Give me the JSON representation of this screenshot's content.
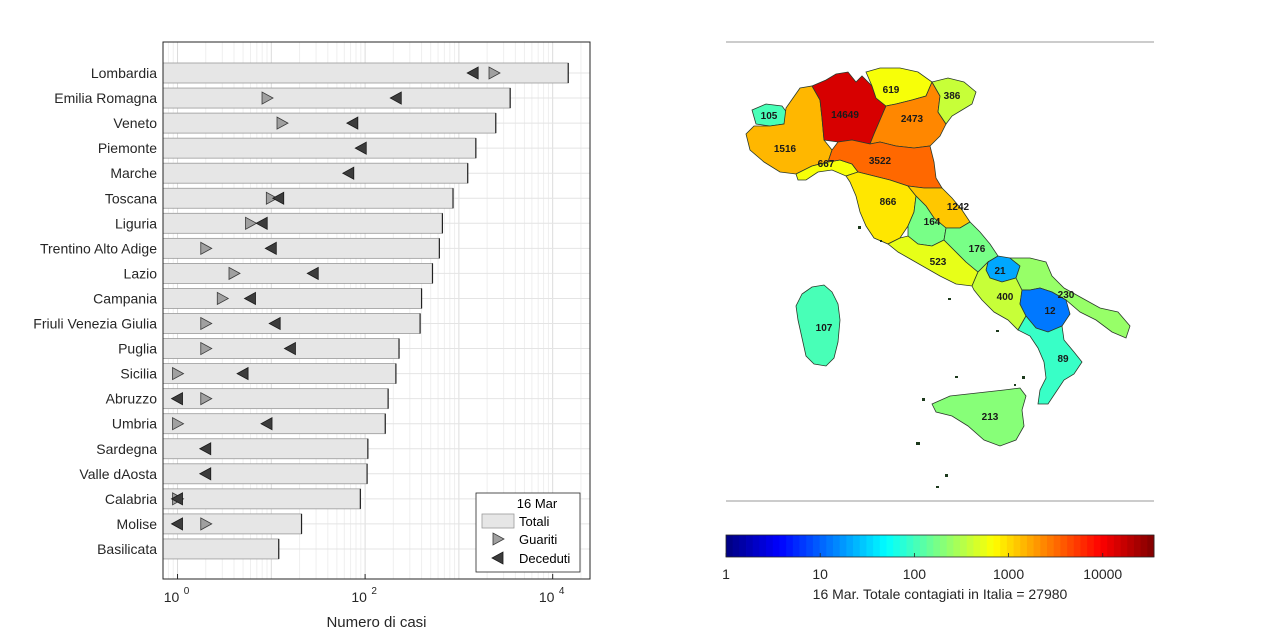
{
  "chart_data": [
    {
      "type": "bar",
      "orientation": "horizontal",
      "xscale": "log",
      "xlim": [
        0.7,
        25000
      ],
      "xlabel": "Numero di casi",
      "xticks": [
        {
          "value": 1,
          "base": "10",
          "exp": "0"
        },
        {
          "value": 100,
          "base": "10",
          "exp": "2"
        },
        {
          "value": 10000,
          "base": "10",
          "exp": "4"
        }
      ],
      "grid": true,
      "legend_position": "bottom-right",
      "legend": {
        "title": "16 Mar",
        "entries": [
          {
            "name": "Totali",
            "symbol": "bar"
          },
          {
            "name": "Guariti",
            "symbol": "triangle-right"
          },
          {
            "name": "Deceduti",
            "symbol": "triangle-left"
          }
        ]
      },
      "categories": [
        "Lombardia",
        "Emilia Romagna",
        "Veneto",
        "Piemonte",
        "Marche",
        "Toscana",
        "Liguria",
        "Trentino Alto Adige",
        "Lazio",
        "Campania",
        "Friuli Venezia Giulia",
        "Puglia",
        "Sicilia",
        "Abruzzo",
        "Umbria",
        "Sardegna",
        "Valle dAosta",
        "Calabria",
        "Molise",
        "Basilicata"
      ],
      "series": [
        {
          "name": "Totali",
          "values": [
            14649,
            3522,
            2473,
            1516,
            1242,
            866,
            667,
            619,
            523,
            400,
            386,
            230,
            213,
            176,
            164,
            107,
            105,
            89,
            21,
            12
          ]
        },
        {
          "name": "Guariti",
          "values": [
            2368,
            9,
            13,
            null,
            null,
            10,
            6,
            2,
            4,
            3,
            2,
            2,
            1,
            2,
            1,
            null,
            null,
            1,
            2,
            null
          ]
        },
        {
          "name": "Deceduti",
          "values": [
            1420,
            215,
            74,
            91,
            67,
            12,
            8,
            10,
            28,
            6,
            11,
            16,
            5,
            1,
            9,
            2,
            2,
            1,
            1,
            null
          ]
        }
      ]
    },
    {
      "type": "heatmap",
      "subtype": "choropleth",
      "title": "16 Mar. Totale contagiati in Italia = 27980",
      "colorbar": {
        "scale": "log",
        "range": [
          1,
          35000
        ],
        "ticks": [
          {
            "value": 1,
            "label": "1"
          },
          {
            "value": 10,
            "label": "10"
          },
          {
            "value": 100,
            "label": "100"
          },
          {
            "value": 1000,
            "label": "1000"
          },
          {
            "value": 10000,
            "label": "10000"
          }
        ],
        "steps": 64,
        "colormap": "jet"
      },
      "regions": [
        {
          "name": "Lombardia",
          "value": 14649,
          "label": "14649"
        },
        {
          "name": "Emilia Romagna",
          "value": 3522,
          "label": "3522"
        },
        {
          "name": "Veneto",
          "value": 2473,
          "label": "2473"
        },
        {
          "name": "Piemonte",
          "value": 1516,
          "label": "1516"
        },
        {
          "name": "Marche",
          "value": 1242,
          "label": "1242"
        },
        {
          "name": "Toscana",
          "value": 866,
          "label": "866"
        },
        {
          "name": "Liguria",
          "value": 667,
          "label": "667"
        },
        {
          "name": "Trentino Alto Adige",
          "value": 619,
          "label": "619"
        },
        {
          "name": "Lazio",
          "value": 523,
          "label": "523"
        },
        {
          "name": "Campania",
          "value": 400,
          "label": "400"
        },
        {
          "name": "Friuli Venezia Giulia",
          "value": 386,
          "label": "386"
        },
        {
          "name": "Puglia",
          "value": 230,
          "label": "230"
        },
        {
          "name": "Sicilia",
          "value": 213,
          "label": "213"
        },
        {
          "name": "Abruzzo",
          "value": 176,
          "label": "176"
        },
        {
          "name": "Umbria",
          "value": 164,
          "label": "164"
        },
        {
          "name": "Sardegna",
          "value": 107,
          "label": "107"
        },
        {
          "name": "Valle dAosta",
          "value": 105,
          "label": "105"
        },
        {
          "name": "Calabria",
          "value": 89,
          "label": "89"
        },
        {
          "name": "Molise",
          "value": 21,
          "label": "21"
        },
        {
          "name": "Basilicata",
          "value": 12,
          "label": "12"
        }
      ]
    }
  ]
}
